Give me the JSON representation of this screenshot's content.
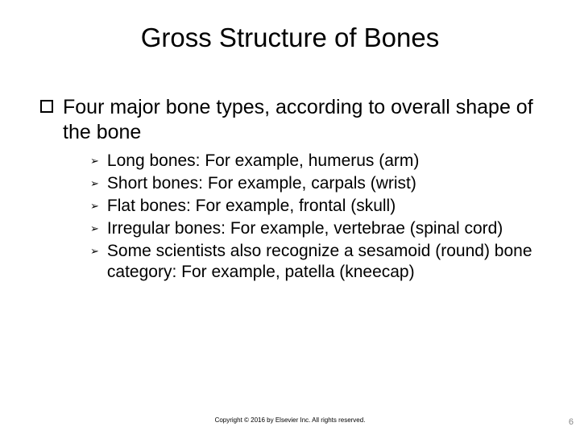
{
  "slide": {
    "title": "Gross Structure of Bones",
    "level1_text": "Four major bone types, according to overall shape of the bone",
    "sub_items": [
      "Long bones: For example, humerus (arm)",
      "Short bones: For example, carpals (wrist)",
      "Flat bones: For example, frontal (skull)",
      "Irregular bones: For example, vertebrae (spinal cord)",
      "Some scientists also recognize a sesamoid (round) bone category: For example, patella (kneecap)"
    ],
    "footer": "Copyright © 2016 by Elsevier Inc. All rights reserved.",
    "page_number": "6"
  },
  "style": {
    "background_color": "#ffffff",
    "text_color": "#000000",
    "title_fontsize": 33,
    "body_fontsize": 25,
    "sub_fontsize": 21,
    "footer_fontsize": 8,
    "pagenum_color": "#878787",
    "l1_bullet": "hollow-square",
    "l2_bullet_glyph": "➢"
  }
}
